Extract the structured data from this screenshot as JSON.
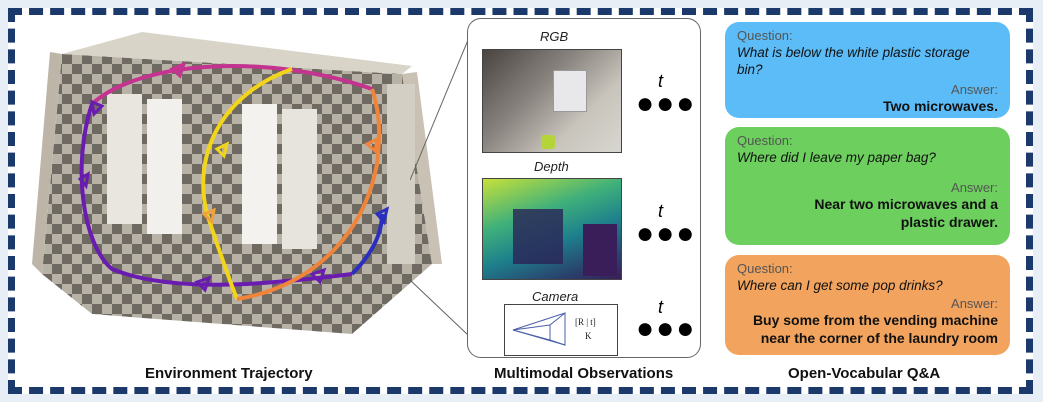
{
  "captions": {
    "environment": "Environment Trajectory",
    "multimodal": "Multimodal Observations",
    "qa": "Open-Vocabular Q&A"
  },
  "observations": {
    "rgb_label": "RGB",
    "depth_label": "Depth",
    "camera_label": "Camera",
    "time_label": "t",
    "camera_matrix_top": "[R | t]",
    "camera_matrix_bottom": "K"
  },
  "qa": [
    {
      "question_label": "Question:",
      "question": "What is below the white plastic storage bin?",
      "answer_label": "Answer:",
      "answer": "Two microwaves.",
      "color": "#5bbcf7"
    },
    {
      "question_label": "Question:",
      "question": "Where did I leave my paper bag?",
      "answer_label": "Answer:",
      "answer": "Near two microwaves and a plastic drawer.",
      "color": "#6ccf5e"
    },
    {
      "question_label": "Question:",
      "question": "Where can I get some pop drinks?",
      "answer_label": "Answer:",
      "answer": "Buy some from the vending machine near the corner of the laundry room",
      "color": "#f2a35e"
    }
  ],
  "colors": {
    "frame": "#1b3a6b",
    "trajectory_purple": "#6a1bb0",
    "trajectory_magenta": "#c4338f",
    "trajectory_yellow": "#f2d51a",
    "trajectory_orange": "#f0843a",
    "trajectory_blue": "#2a2fbf"
  }
}
